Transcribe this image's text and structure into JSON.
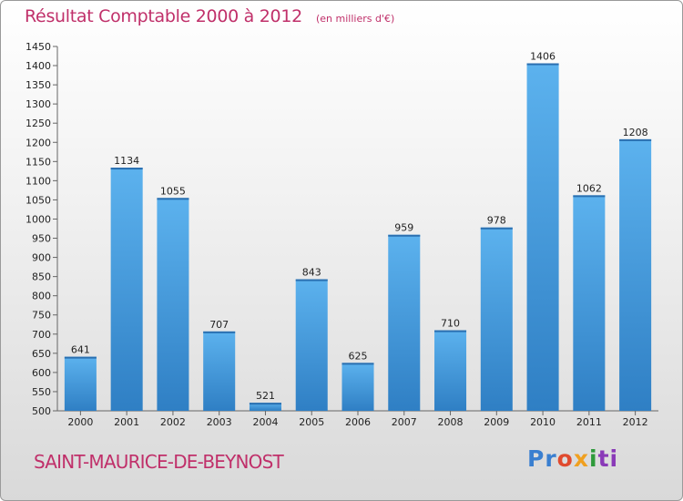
{
  "chart_data": {
    "type": "bar",
    "title": "Résultat Comptable 2000 à 2012",
    "subtitle": "(en milliers d'€)",
    "categories": [
      "2000",
      "2001",
      "2002",
      "2003",
      "2004",
      "2005",
      "2006",
      "2007",
      "2008",
      "2009",
      "2010",
      "2011",
      "2012"
    ],
    "values": [
      641,
      1134,
      1055,
      707,
      521,
      843,
      625,
      959,
      710,
      978,
      1406,
      1062,
      1208
    ],
    "ylim": [
      500,
      1450
    ],
    "yticks": [
      500,
      550,
      600,
      650,
      700,
      750,
      800,
      850,
      900,
      950,
      1000,
      1050,
      1100,
      1150,
      1200,
      1250,
      1300,
      1350,
      1400,
      1450
    ],
    "xlabel": "",
    "ylabel": "",
    "grid": false,
    "bar_color": "#4a9fe0"
  },
  "footer": {
    "city": "SAINT-MAURICE-DE-BEYNOST",
    "logo_parts": [
      "Pr",
      "o",
      "x",
      "i",
      "ti"
    ]
  }
}
